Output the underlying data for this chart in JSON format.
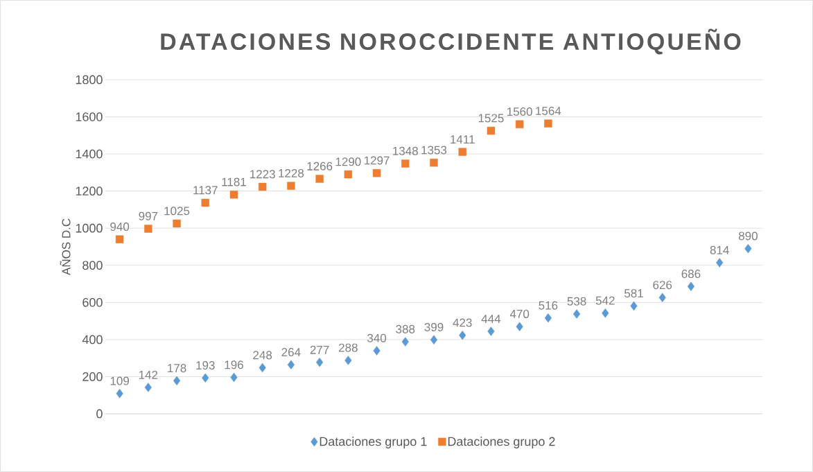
{
  "chart_data": {
    "type": "scatter",
    "title": "DATACIONES NOROCCIDENTE ANTIOQUEÑO",
    "ylabel": "AÑOS D.C",
    "categories": [
      null,
      null,
      null,
      null,
      null,
      null,
      null,
      null,
      null,
      null,
      null,
      null,
      null,
      null,
      null,
      null,
      null,
      null,
      null,
      null,
      null,
      null,
      null
    ],
    "series": [
      {
        "name": "Dataciones grupo 1",
        "color": "#5b9bd5",
        "marker": "diamond",
        "values": [
          109,
          142,
          178,
          193,
          196,
          248,
          264,
          277,
          288,
          340,
          388,
          399,
          423,
          444,
          470,
          516,
          538,
          542,
          581,
          626,
          686,
          814,
          890
        ]
      },
      {
        "name": "Dataciones grupo 2",
        "color": "#ed7d31",
        "marker": "square",
        "values": [
          940,
          997,
          1025,
          1137,
          1181,
          1223,
          1228,
          1266,
          1290,
          1297,
          1348,
          1353,
          1411,
          1525,
          1560,
          1564,
          null,
          null,
          null,
          null,
          null,
          null,
          null
        ]
      }
    ],
    "ylim": [
      0,
      1800
    ],
    "yticks": [
      0,
      200,
      400,
      600,
      800,
      1000,
      1200,
      1400,
      1600,
      1800
    ],
    "grid": "y",
    "legend": "bottom",
    "data_labels": true
  }
}
